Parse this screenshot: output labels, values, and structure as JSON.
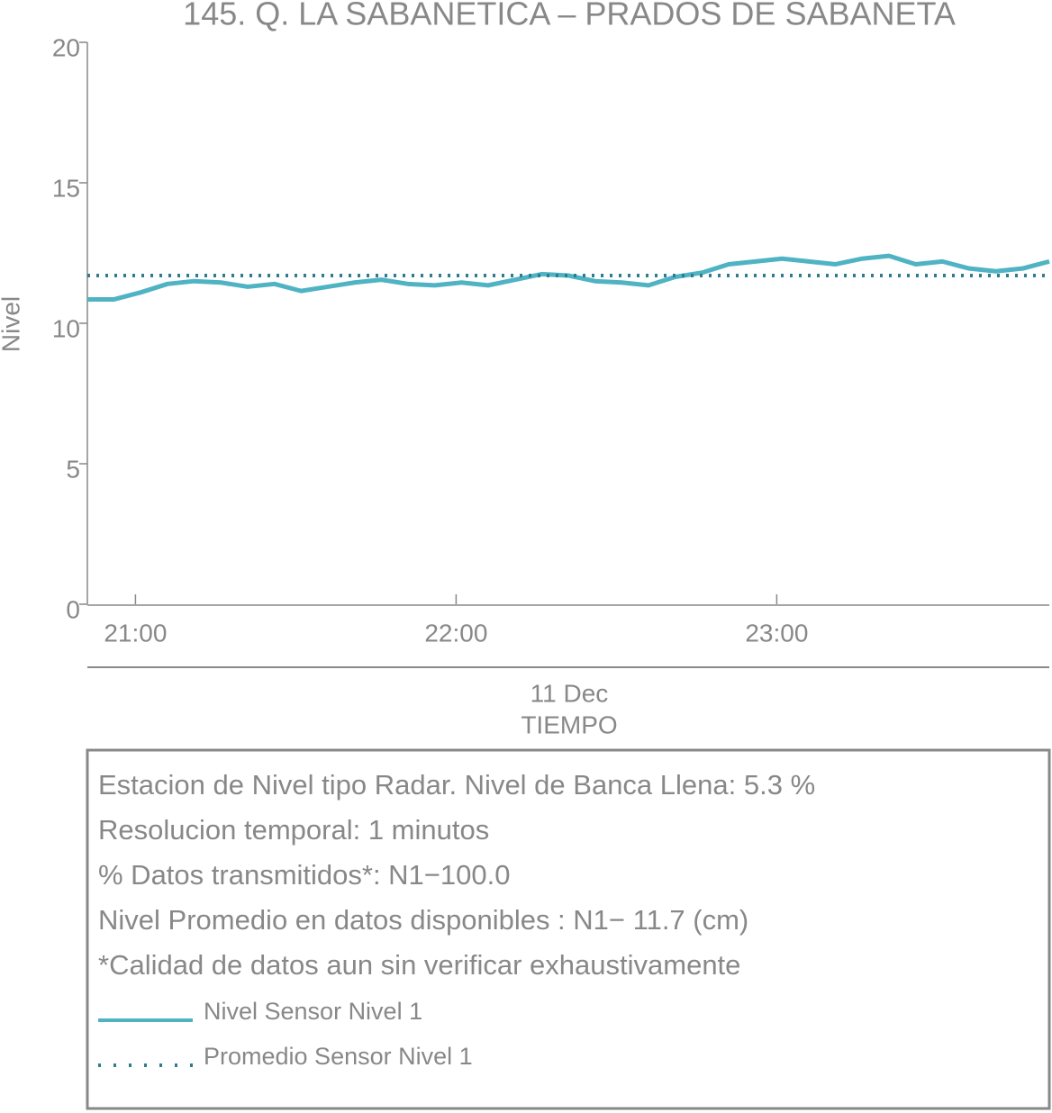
{
  "chart_data": {
    "type": "line",
    "title": "145. Q. LA SABANETICA – PRADOS DE SABANETA",
    "ylabel": "Nivel",
    "xlabel": "TIEMPO",
    "date_label": "11 Dec",
    "ylim": [
      0,
      20
    ],
    "yticks": [
      0,
      5,
      10,
      15,
      20
    ],
    "xlim": [
      "20:51",
      "23:51"
    ],
    "xticks": [
      "21:00",
      "22:00",
      "23:00"
    ],
    "x": [
      "20:51",
      "20:56",
      "21:01",
      "21:06",
      "21:11",
      "21:16",
      "21:21",
      "21:26",
      "21:31",
      "21:36",
      "21:41",
      "21:46",
      "21:51",
      "21:56",
      "22:01",
      "22:06",
      "22:11",
      "22:16",
      "22:21",
      "22:26",
      "22:31",
      "22:36",
      "22:41",
      "22:46",
      "22:51",
      "22:56",
      "23:01",
      "23:06",
      "23:11",
      "23:16",
      "23:21",
      "23:26",
      "23:31",
      "23:36",
      "23:41",
      "23:46",
      "23:51"
    ],
    "series": [
      {
        "name": "Nivel Sensor Nivel 1",
        "color": "#4fb3c4",
        "style": "solid",
        "values": [
          10.85,
          10.85,
          11.1,
          11.4,
          11.5,
          11.45,
          11.3,
          11.4,
          11.15,
          11.3,
          11.45,
          11.55,
          11.4,
          11.35,
          11.45,
          11.35,
          11.55,
          11.75,
          11.7,
          11.5,
          11.45,
          11.35,
          11.65,
          11.8,
          12.1,
          12.2,
          12.3,
          12.2,
          12.1,
          12.3,
          12.4,
          12.1,
          12.2,
          11.95,
          11.85,
          11.95,
          12.2
        ]
      },
      {
        "name": "Promedio Sensor Nivel 1",
        "color": "#2f7d8c",
        "style": "dotted",
        "value": 11.7
      }
    ],
    "info": [
      "Estacion de Nivel tipo Radar. Nivel de Banca Llena:  5.3 %",
      "Resolucion temporal: 1 minutos",
      "% Datos transmitidos*: N1−100.0",
      "Nivel Promedio en datos disponibles : N1− 11.7 (cm)",
      "*Calidad de datos aun sin verificar exhaustivamente"
    ]
  }
}
